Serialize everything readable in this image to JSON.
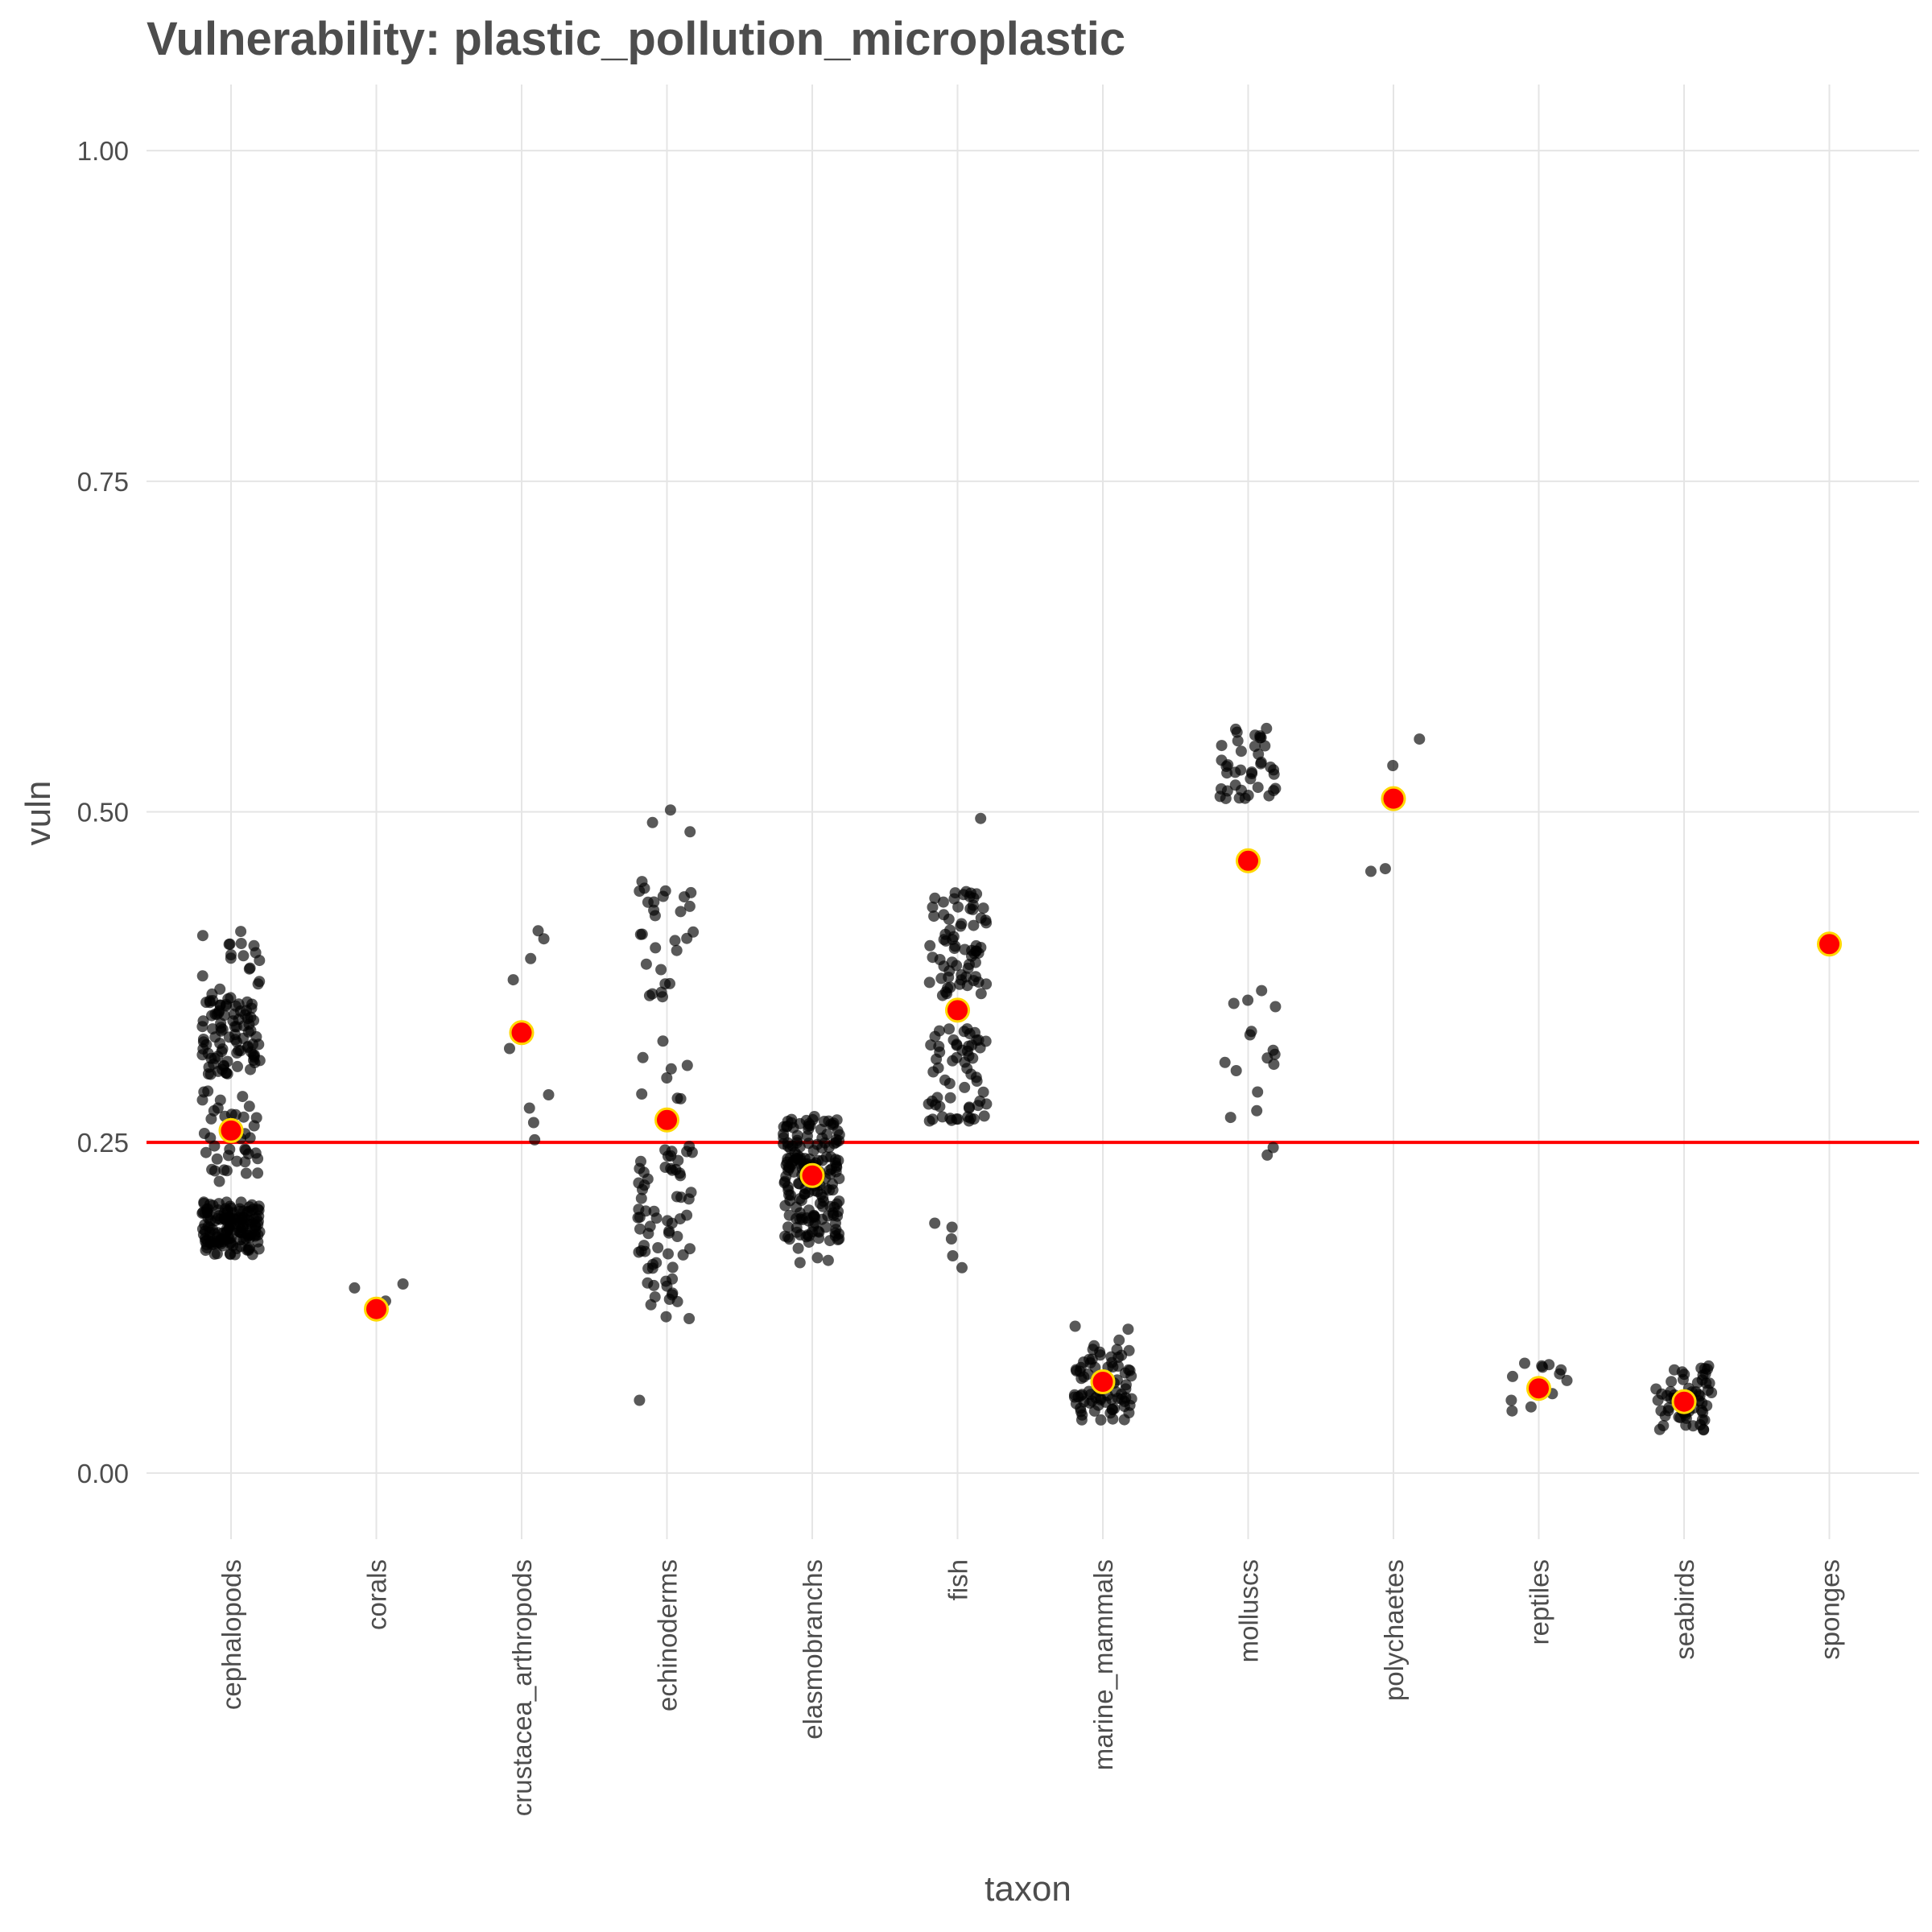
{
  "chart_data": {
    "type": "scatter",
    "title": "Vulnerability: plastic_pollution_microplastic",
    "xlabel": "taxon",
    "ylabel": "vuln",
    "ylim": [
      -0.05,
      1.05
    ],
    "yticks": [
      "0.00",
      "0.25",
      "0.50",
      "0.75",
      "1.00"
    ],
    "ytick_values": [
      0,
      0.25,
      0.5,
      0.75,
      1.0
    ],
    "categories": [
      "cephalopods",
      "corals",
      "crustacea_arthropods",
      "echinoderms",
      "elasmobranchs",
      "fish",
      "marine_mammals",
      "molluscs",
      "polychaetes",
      "reptiles",
      "seabirds",
      "sponges"
    ],
    "reference_line": {
      "y": 0.25,
      "color": "#ff0000"
    },
    "colors": {
      "points": "#000000",
      "mean_fill": "#ff0000",
      "mean_stroke": "#ffd700",
      "ref_line": "#ff0000",
      "grid": "#e5e5e5"
    },
    "grid": true,
    "legend": "none",
    "means": [
      0.259,
      0.124,
      0.333,
      0.267,
      0.225,
      0.35,
      0.069,
      0.463,
      0.51,
      0.064,
      0.054,
      0.4
    ],
    "series": [
      {
        "category": "cephalopods",
        "clusters": [
          {
            "min": 0.165,
            "max": 0.205,
            "n": 150
          },
          {
            "min": 0.22,
            "max": 0.29,
            "n": 40
          },
          {
            "min": 0.3,
            "max": 0.36,
            "n": 90
          },
          {
            "min": 0.36,
            "max": 0.41,
            "n": 18
          }
        ]
      },
      {
        "category": "corals",
        "points": [
          0.143,
          0.14,
          0.13
        ]
      },
      {
        "category": "crustacea_arthropods",
        "points": [
          0.41,
          0.404,
          0.389,
          0.373,
          0.321,
          0.286,
          0.276,
          0.265,
          0.252
        ]
      },
      {
        "category": "echinoderms",
        "clusters": [
          {
            "min": 0.055,
            "max": 0.055,
            "n": 1
          },
          {
            "min": 0.11,
            "max": 0.16,
            "n": 18
          },
          {
            "min": 0.16,
            "max": 0.25,
            "n": 50
          },
          {
            "min": 0.27,
            "max": 0.33,
            "n": 8
          },
          {
            "min": 0.36,
            "max": 0.45,
            "n": 28
          },
          {
            "min": 0.48,
            "max": 0.51,
            "n": 3
          }
        ]
      },
      {
        "category": "elasmobranchs",
        "clusters": [
          {
            "min": 0.155,
            "max": 0.175,
            "n": 5
          },
          {
            "min": 0.175,
            "max": 0.27,
            "n": 180
          }
        ]
      },
      {
        "category": "fish",
        "clusters": [
          {
            "min": 0.155,
            "max": 0.19,
            "n": 5
          },
          {
            "min": 0.265,
            "max": 0.34,
            "n": 60
          },
          {
            "min": 0.36,
            "max": 0.44,
            "n": 70
          },
          {
            "min": 0.495,
            "max": 0.495,
            "n": 1
          }
        ]
      },
      {
        "category": "marine_mammals",
        "clusters": [
          {
            "min": 0.04,
            "max": 0.09,
            "n": 70
          },
          {
            "min": 0.09,
            "max": 0.115,
            "n": 8
          }
        ]
      },
      {
        "category": "molluscs",
        "clusters": [
          {
            "min": 0.237,
            "max": 0.29,
            "n": 5
          },
          {
            "min": 0.3,
            "max": 0.37,
            "n": 12
          },
          {
            "min": 0.51,
            "max": 0.565,
            "n": 40
          }
        ]
      },
      {
        "category": "polychaetes",
        "points": [
          0.555,
          0.535,
          0.457,
          0.455
        ]
      },
      {
        "category": "reptiles",
        "points": [
          0.083,
          0.082,
          0.081,
          0.08,
          0.078,
          0.075,
          0.073,
          0.07,
          0.06,
          0.055,
          0.05,
          0.047
        ]
      },
      {
        "category": "seabirds",
        "clusters": [
          {
            "min": 0.032,
            "max": 0.082,
            "n": 60
          }
        ]
      },
      {
        "category": "sponges",
        "points": []
      }
    ]
  }
}
